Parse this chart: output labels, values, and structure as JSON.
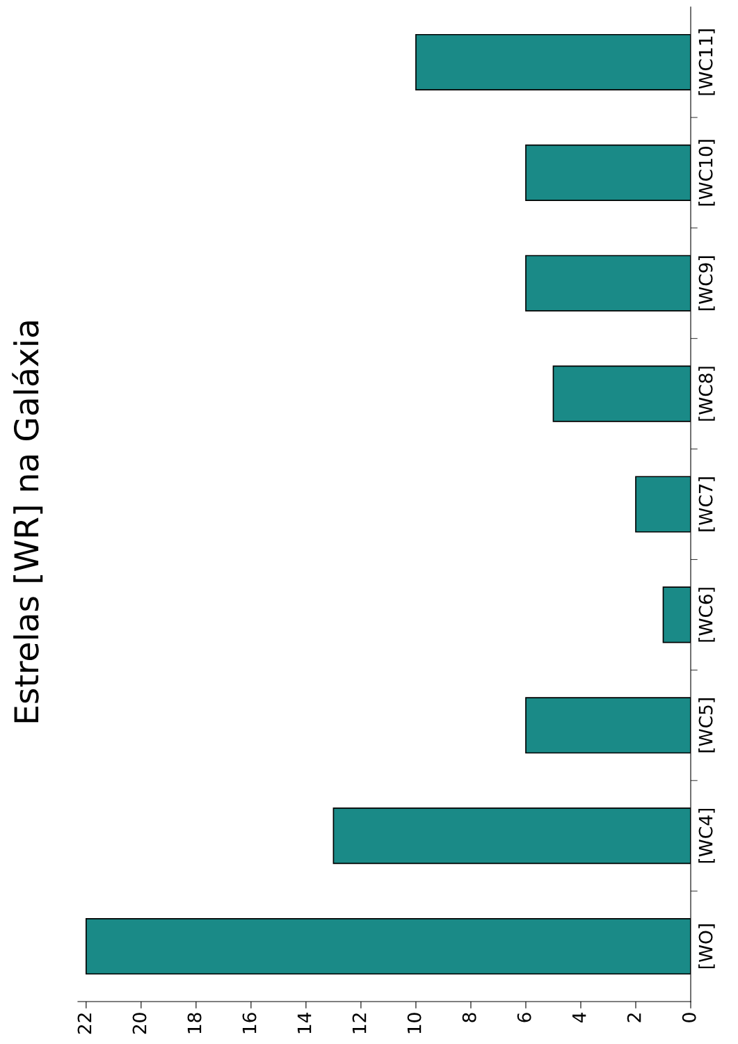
{
  "chart_data": {
    "type": "bar",
    "title": "Estrelas [WR] na Galáxia",
    "orientation": "horizontal",
    "categories": [
      "[WC11]",
      "[WC10]",
      "[WC9]",
      "[WC8]",
      "[WC7]",
      "[WC6]",
      "[WC5]",
      "[WC4]",
      "[WO]"
    ],
    "values": [
      10,
      6,
      6,
      5,
      2,
      1,
      6,
      13,
      22
    ],
    "color": "#1a8a87",
    "xlim": [
      22.3,
      0
    ],
    "xticks": [
      22,
      20,
      18,
      16,
      14,
      12,
      10,
      8,
      6,
      4,
      2,
      0
    ],
    "grid": false
  }
}
